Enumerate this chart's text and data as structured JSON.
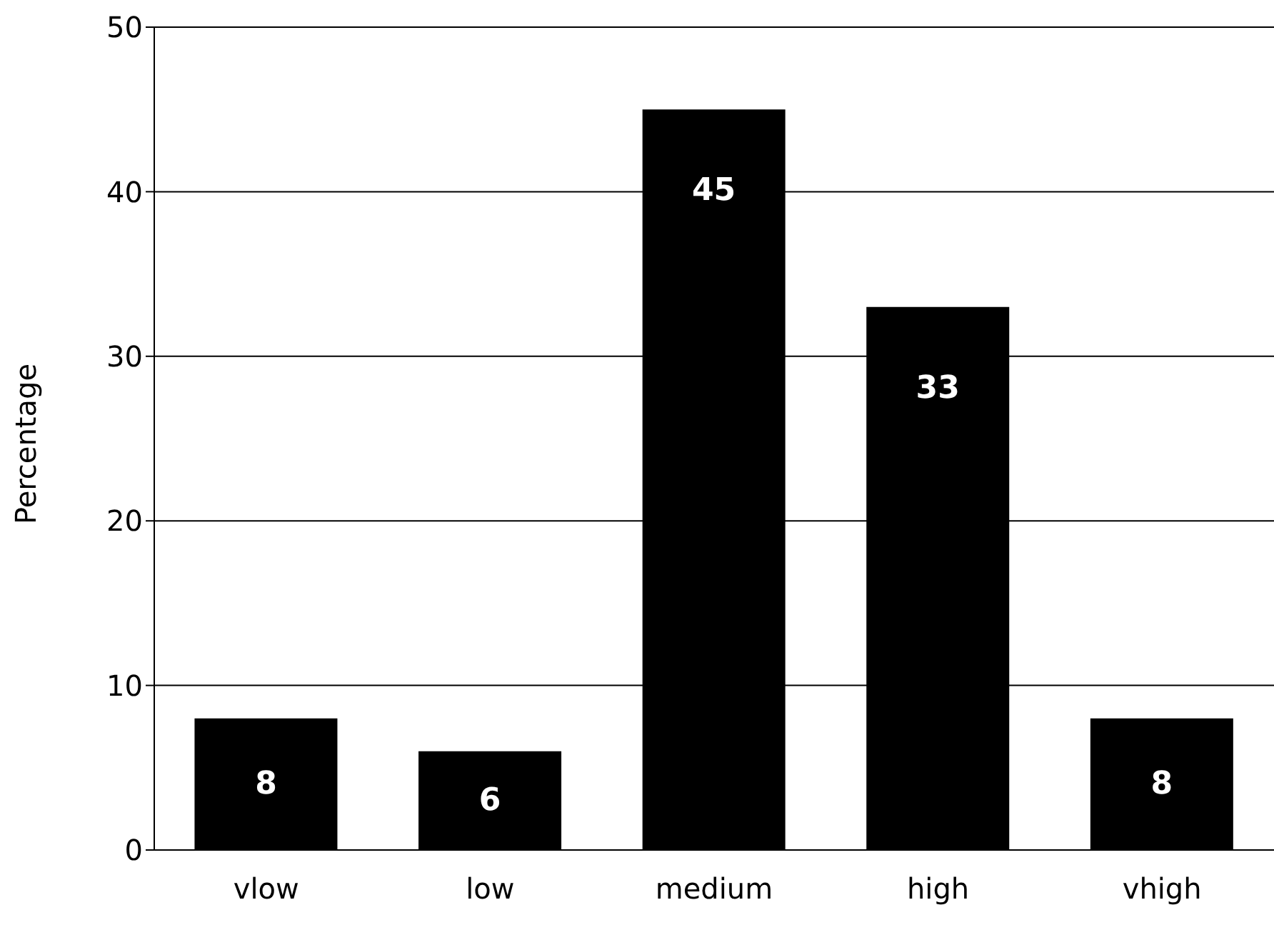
{
  "chart_data": {
    "type": "bar",
    "ylabel": "Percentage",
    "categories": [
      "vlow",
      "low",
      "medium",
      "high",
      "vhigh"
    ],
    "values": [
      8,
      6,
      45,
      33,
      8
    ],
    "color": "#000000",
    "ylim": [
      0,
      50
    ],
    "yticks": [
      0,
      10,
      20,
      30,
      40,
      50
    ],
    "grid": "y",
    "data_labels": true
  }
}
